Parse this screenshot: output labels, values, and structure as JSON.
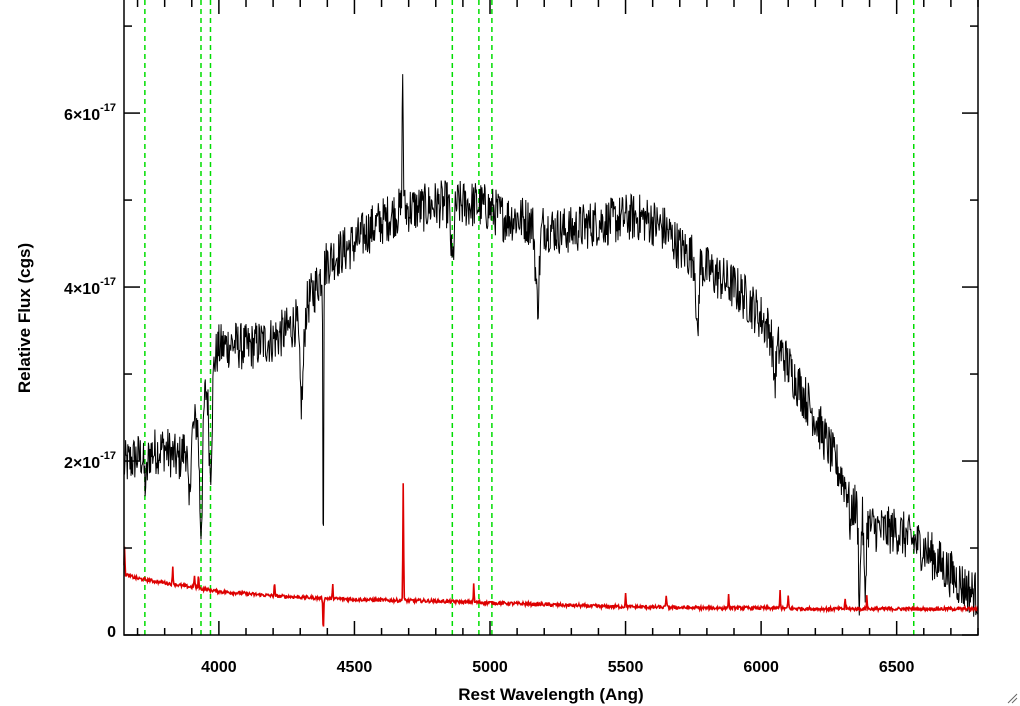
{
  "chart_data": {
    "type": "line",
    "xlabel": "Rest Wavelength (Ang)",
    "ylabel": "Relative Flux (cgs)",
    "xlim": [
      3650,
      6800
    ],
    "ylim": [
      0,
      7.3e-17
    ],
    "x_ticks": [
      4000,
      4500,
      5000,
      5500,
      6000,
      6500
    ],
    "x_tick_labels": [
      "4000",
      "4500",
      "5000",
      "5500",
      "6000",
      "6500"
    ],
    "x_minor_step": 100,
    "y_ticks": [
      0,
      2e-17,
      4e-17,
      6e-17
    ],
    "y_tick_labels": [
      {
        "mantissa": "0",
        "exponent": ""
      },
      {
        "mantissa": "2×10",
        "exponent": "-17"
      },
      {
        "mantissa": "4×10",
        "exponent": "-17"
      },
      {
        "mantissa": "6×10",
        "exponent": "-17"
      }
    ],
    "y_minor_step": 1e-17,
    "reference_lines_x": [
      3727,
      3934,
      3969,
      4861,
      4959,
      5007,
      6563
    ],
    "reference_line_color": "#00dd00",
    "series": [
      {
        "color": "#000000",
        "x": [
          3650,
          3700,
          3750,
          3800,
          3850,
          3900,
          3950,
          3980,
          4000,
          4050,
          4100,
          4150,
          4200,
          4250,
          4300,
          4350,
          4400,
          4450,
          4500,
          4550,
          4600,
          4650,
          4700,
          4750,
          4800,
          4850,
          4900,
          4950,
          5000,
          5050,
          5100,
          5150,
          5200,
          5250,
          5300,
          5350,
          5400,
          5450,
          5500,
          5550,
          5600,
          5650,
          5700,
          5750,
          5800,
          5850,
          5900,
          5950,
          6000,
          6050,
          6100,
          6150,
          6200,
          6250,
          6300,
          6350,
          6400,
          6450,
          6500,
          6550,
          6600,
          6650,
          6700,
          6750,
          6800
        ],
        "y": [
          1.95e-17,
          2.05e-17,
          2.1e-17,
          2.15e-17,
          2e-17,
          2.3e-17,
          2.8e-17,
          3.15e-17,
          3.3e-17,
          3.35e-17,
          3.3e-17,
          3.35e-17,
          3.4e-17,
          3.5e-17,
          3.65e-17,
          3.95e-17,
          4.3e-17,
          4.4e-17,
          4.5e-17,
          4.65e-17,
          4.75e-17,
          4.85e-17,
          4.9e-17,
          4.9e-17,
          4.95e-17,
          4.95e-17,
          4.95e-17,
          4.95e-17,
          4.9e-17,
          4.8e-17,
          4.8e-17,
          4.75e-17,
          4.7e-17,
          4.65e-17,
          4.65e-17,
          4.7e-17,
          4.75e-17,
          4.75e-17,
          4.8e-17,
          4.8e-17,
          4.75e-17,
          4.65e-17,
          4.45e-17,
          4.35e-17,
          4.2e-17,
          4.1e-17,
          4e-17,
          3.85e-17,
          3.65e-17,
          3.4e-17,
          3.1e-17,
          2.8e-17,
          2.5e-17,
          2.15e-17,
          1.8e-17,
          1.45e-17,
          1.25e-17,
          1.2e-17,
          1.2e-17,
          1.1e-17,
          1e-17,
          8.5e-18,
          7e-18,
          5.5e-18,
          4.5e-18
        ],
        "features": [
          {
            "x": 3730,
            "depth": 3.5e-18,
            "width": 8
          },
          {
            "x": 3890,
            "depth": 8e-18,
            "width": 6
          },
          {
            "x": 3934,
            "depth": 1.4e-17,
            "width": 8
          },
          {
            "x": 3969,
            "depth": 1.1e-17,
            "width": 8
          },
          {
            "x": 4305,
            "depth": 1e-17,
            "width": 10
          },
          {
            "x": 4385,
            "depth": 3.5e-17,
            "width": 2
          },
          {
            "x": 4678,
            "depth": -1.6e-17,
            "width": 3
          },
          {
            "x": 4861,
            "depth": 7e-18,
            "width": 8
          },
          {
            "x": 5175,
            "depth": 9e-18,
            "width": 10
          },
          {
            "x": 5765,
            "depth": 9.5e-18,
            "width": 6
          },
          {
            "x": 6050,
            "depth": 4.5e-18,
            "width": 8
          },
          {
            "x": 6330,
            "depth": 3.5e-18,
            "width": 6
          },
          {
            "x": 6363,
            "depth": 1e-17,
            "width": 5
          },
          {
            "x": 6383,
            "depth": 9e-18,
            "width": 5
          }
        ],
        "noise": 2.8e-18
      },
      {
        "color": "#dd0000",
        "x": [
          3650,
          3700,
          3800,
          3900,
          4000,
          4200,
          4400,
          4600,
          4800,
          5000,
          5200,
          5400,
          5600,
          5800,
          6000,
          6200,
          6400,
          6600,
          6800
        ],
        "y": [
          7e-18,
          6.5e-18,
          6e-18,
          5.5e-18,
          5e-18,
          4.5e-18,
          4.2e-18,
          4e-18,
          3.9e-18,
          3.7e-18,
          3.5e-18,
          3.3e-18,
          3.2e-18,
          3.1e-18,
          3.1e-18,
          3e-18,
          3e-18,
          3e-18,
          3e-18
        ],
        "features": [
          {
            "x": 3652,
            "depth": -3e-18,
            "width": 2
          },
          {
            "x": 3830,
            "depth": -2e-18,
            "width": 2
          },
          {
            "x": 3910,
            "depth": -1.5e-18,
            "width": 2
          },
          {
            "x": 3925,
            "depth": -1.5e-18,
            "width": 2
          },
          {
            "x": 4205,
            "depth": -1.5e-18,
            "width": 2
          },
          {
            "x": 4385,
            "depth": 4e-18,
            "width": 2
          },
          {
            "x": 4420,
            "depth": -1.5e-18,
            "width": 2
          },
          {
            "x": 4680,
            "depth": -1.35e-17,
            "width": 2
          },
          {
            "x": 4940,
            "depth": -2e-18,
            "width": 2
          },
          {
            "x": 5500,
            "depth": -1.5e-18,
            "width": 2
          },
          {
            "x": 5650,
            "depth": -1.5e-18,
            "width": 2
          },
          {
            "x": 5880,
            "depth": -1.5e-18,
            "width": 2
          },
          {
            "x": 6070,
            "depth": -2e-18,
            "width": 2
          },
          {
            "x": 6100,
            "depth": -1.5e-18,
            "width": 2
          },
          {
            "x": 6310,
            "depth": -1.2e-18,
            "width": 2
          },
          {
            "x": 6390,
            "depth": -1.5e-18,
            "width": 2
          }
        ],
        "noise": 2e-19
      }
    ]
  }
}
